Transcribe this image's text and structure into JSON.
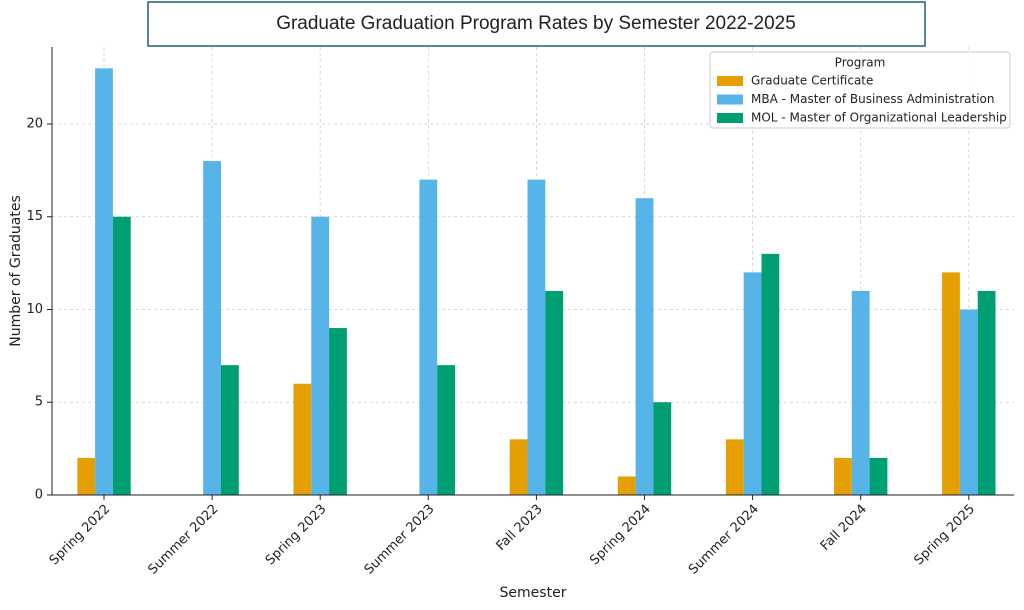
{
  "chart_data": {
    "type": "bar",
    "title": "Graduate Graduation Program Rates by Semester 2022-2025",
    "x_label": "Semester",
    "y_label": "Number of Graduates",
    "legend_title": "Program",
    "legend_position": "upper right",
    "categories": [
      "Spring 2022",
      "Summer 2022",
      "Spring 2023",
      "Summer 2023",
      "Fall 2023",
      "Spring 2024",
      "Summer 2024",
      "Fall 2024",
      "Spring 2025"
    ],
    "series": [
      {
        "name": "Graduate Certificate",
        "color": "#E69F00",
        "values": [
          2,
          0,
          6,
          0,
          3,
          1,
          3,
          2,
          12
        ]
      },
      {
        "name": "MBA - Master of Business Administration",
        "color": "#56B4E9",
        "values": [
          23,
          18,
          15,
          17,
          17,
          16,
          12,
          11,
          10
        ]
      },
      {
        "name": "MOL - Master of Organizational Leadership",
        "color": "#009E73",
        "values": [
          15,
          7,
          9,
          7,
          11,
          5,
          13,
          2,
          11
        ]
      }
    ],
    "ylim": [
      0,
      24.15
    ],
    "yticks": [
      0,
      5,
      10,
      15,
      20
    ],
    "grid": true
  }
}
